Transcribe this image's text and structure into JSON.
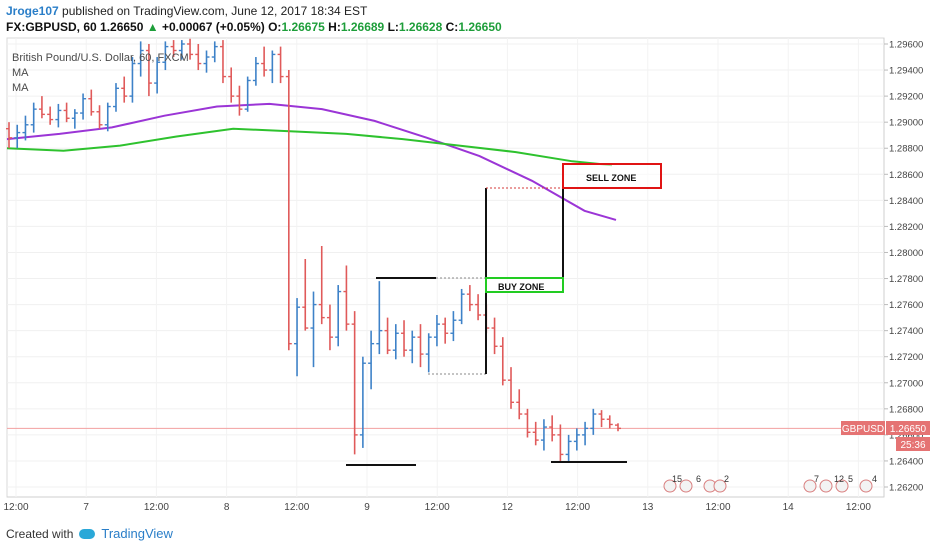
{
  "header": {
    "user": "Jroge107",
    "published": "published on TradingView.com, June 12, 2017 18:34 EST",
    "symbol_label": "FX:GBPUSD, 60",
    "last_value": "1.26650",
    "change_arrow": "▲",
    "change_text": "+0.00067 (+0.05%)",
    "o_label": "O:",
    "o_value": "1.26675",
    "h_label": "H:",
    "h_value": "1.26689",
    "l_label": "L:",
    "l_value": "1.26628",
    "c_label": "C:",
    "c_value": "1.26650"
  },
  "pane": {
    "title": "British Pound/U.S. Dollar, 60, FXCM",
    "ma1_label": "MA",
    "ma2_label": "MA"
  },
  "badges": {
    "symbol": "GBPUSD",
    "price": "1.26650",
    "countdown": "25:36"
  },
  "annotations": {
    "sell_zone": "SELL ZONE",
    "buy_zone": "BUY ZONE"
  },
  "events": {
    "group1": [
      "15",
      "6",
      "2"
    ],
    "group2": [
      "7",
      "12",
      "5",
      "4"
    ]
  },
  "footer": {
    "created_with": "Created with",
    "brand": "TradingView"
  },
  "colors": {
    "up": "#3e82c8",
    "down": "#e05a5a",
    "ma_fast": "#9b35d6",
    "ma_slow": "#2ec22e",
    "sell_zone_border": "#e01414",
    "buy_zone_border": "#22cc22",
    "price_badge": "#e57373"
  },
  "chart_data": {
    "type": "candlestick",
    "title": "British Pound/U.S. Dollar, 60, FXCM",
    "x_tick_labels": [
      "12:00",
      "7",
      "12:00",
      "8",
      "12:00",
      "9",
      "12:00",
      "12",
      "12:00",
      "13",
      "12:00",
      "14",
      "12:00"
    ],
    "y_tick_labels": [
      "1.29600",
      "1.29400",
      "1.29200",
      "1.29000",
      "1.28800",
      "1.28600",
      "1.28400",
      "1.28200",
      "1.28000",
      "1.27800",
      "1.27600",
      "1.27400",
      "1.27200",
      "1.27000",
      "1.26800",
      "1.26600",
      "1.26400",
      "1.26200"
    ],
    "ylim": [
      1.2612,
      1.2966
    ],
    "bars": [
      [
        1.2895,
        1.29,
        1.288,
        1.2888
      ],
      [
        1.2888,
        1.2898,
        1.288,
        1.2892
      ],
      [
        1.2892,
        1.2905,
        1.2886,
        1.2898
      ],
      [
        1.2898,
        1.2915,
        1.2892,
        1.291
      ],
      [
        1.291,
        1.292,
        1.2903,
        1.2906
      ],
      [
        1.2906,
        1.2912,
        1.2898,
        1.2902
      ],
      [
        1.2902,
        1.2914,
        1.2896,
        1.2909
      ],
      [
        1.2909,
        1.2915,
        1.29,
        1.2903
      ],
      [
        1.2903,
        1.291,
        1.2895,
        1.2907
      ],
      [
        1.2907,
        1.2922,
        1.2902,
        1.2918
      ],
      [
        1.2918,
        1.2925,
        1.2905,
        1.2908
      ],
      [
        1.2908,
        1.2913,
        1.2895,
        1.2898
      ],
      [
        1.2898,
        1.2915,
        1.2893,
        1.2912
      ],
      [
        1.2912,
        1.293,
        1.2908,
        1.2926
      ],
      [
        1.2926,
        1.2935,
        1.2915,
        1.292
      ],
      [
        1.292,
        1.295,
        1.2915,
        1.2945
      ],
      [
        1.2945,
        1.2962,
        1.2935,
        1.2955
      ],
      [
        1.2955,
        1.296,
        1.292,
        1.293
      ],
      [
        1.293,
        1.295,
        1.2922,
        1.2946
      ],
      [
        1.2946,
        1.2962,
        1.294,
        1.2958
      ],
      [
        1.2958,
        1.2963,
        1.295,
        1.2955
      ],
      [
        1.2955,
        1.2963,
        1.2948,
        1.296
      ],
      [
        1.296,
        1.2964,
        1.2948,
        1.2952
      ],
      [
        1.2952,
        1.296,
        1.294,
        1.2945
      ],
      [
        1.2945,
        1.2955,
        1.2938,
        1.295
      ],
      [
        1.295,
        1.2962,
        1.2946,
        1.2958
      ],
      [
        1.2958,
        1.2963,
        1.293,
        1.2935
      ],
      [
        1.2935,
        1.2942,
        1.2915,
        1.292
      ],
      [
        1.292,
        1.2928,
        1.2905,
        1.291
      ],
      [
        1.291,
        1.2935,
        1.2908,
        1.2932
      ],
      [
        1.2932,
        1.295,
        1.2928,
        1.2945
      ],
      [
        1.2945,
        1.2958,
        1.2935,
        1.294
      ],
      [
        1.294,
        1.2955,
        1.293,
        1.2952
      ],
      [
        1.2952,
        1.2958,
        1.293,
        1.2935
      ],
      [
        1.2935,
        1.294,
        1.2725,
        1.273
      ],
      [
        1.273,
        1.2765,
        1.2705,
        1.2758
      ],
      [
        1.2758,
        1.2795,
        1.274,
        1.2742
      ],
      [
        1.2742,
        1.277,
        1.2712,
        1.276
      ],
      [
        1.276,
        1.2805,
        1.2745,
        1.275
      ],
      [
        1.275,
        1.276,
        1.2725,
        1.2735
      ],
      [
        1.2735,
        1.2775,
        1.2728,
        1.277
      ],
      [
        1.277,
        1.279,
        1.274,
        1.2745
      ],
      [
        1.2745,
        1.2755,
        1.2645,
        1.266
      ],
      [
        1.266,
        1.272,
        1.265,
        1.2715
      ],
      [
        1.2715,
        1.274,
        1.2695,
        1.273
      ],
      [
        1.273,
        1.2778,
        1.2722,
        1.274
      ],
      [
        1.274,
        1.275,
        1.2722,
        1.2725
      ],
      [
        1.2725,
        1.2745,
        1.2718,
        1.2738
      ],
      [
        1.2738,
        1.2748,
        1.272,
        1.2725
      ],
      [
        1.2725,
        1.274,
        1.2715,
        1.2735
      ],
      [
        1.2735,
        1.2745,
        1.2712,
        1.2722
      ],
      [
        1.2722,
        1.2738,
        1.2708,
        1.2735
      ],
      [
        1.2735,
        1.2752,
        1.2728,
        1.2745
      ],
      [
        1.2745,
        1.275,
        1.273,
        1.2738
      ],
      [
        1.2738,
        1.2755,
        1.2732,
        1.2748
      ],
      [
        1.2748,
        1.2772,
        1.2745,
        1.2768
      ],
      [
        1.2768,
        1.2775,
        1.2755,
        1.276
      ],
      [
        1.276,
        1.2768,
        1.2748,
        1.2752
      ],
      [
        1.2752,
        1.276,
        1.2738,
        1.2742
      ],
      [
        1.2742,
        1.275,
        1.2722,
        1.2728
      ],
      [
        1.2728,
        1.2735,
        1.2698,
        1.2702
      ],
      [
        1.2702,
        1.2712,
        1.268,
        1.2685
      ],
      [
        1.2685,
        1.2695,
        1.2672,
        1.2676
      ],
      [
        1.2676,
        1.268,
        1.2658,
        1.2662
      ],
      [
        1.2662,
        1.267,
        1.2652,
        1.2656
      ],
      [
        1.2656,
        1.2672,
        1.2648,
        1.2666
      ],
      [
        1.2666,
        1.2675,
        1.2655,
        1.266
      ],
      [
        1.266,
        1.2668,
        1.264,
        1.2645
      ],
      [
        1.2645,
        1.266,
        1.264,
        1.2655
      ],
      [
        1.2655,
        1.2665,
        1.2648,
        1.266
      ],
      [
        1.266,
        1.267,
        1.2652,
        1.2665
      ],
      [
        1.2665,
        1.268,
        1.266,
        1.2676
      ],
      [
        1.2676,
        1.2679,
        1.2666,
        1.2672
      ],
      [
        1.2672,
        1.2675,
        1.2665,
        1.2668
      ],
      [
        1.26675,
        1.26689,
        1.26628,
        1.2665
      ]
    ],
    "ma_fast": [
      [
        0,
        1.2887
      ],
      [
        20,
        1.2891
      ],
      [
        40,
        1.2896
      ],
      [
        60,
        1.2905
      ],
      [
        80,
        1.2912
      ],
      [
        100,
        1.2914
      ],
      [
        120,
        1.291
      ],
      [
        140,
        1.2901
      ],
      [
        160,
        1.2888
      ],
      [
        180,
        1.2874
      ],
      [
        200,
        1.2855
      ],
      [
        220,
        1.2832
      ],
      [
        232,
        1.2825
      ]
    ],
    "ma_slow": [
      [
        0,
        1.288
      ],
      [
        20,
        1.2878
      ],
      [
        40,
        1.2882
      ],
      [
        60,
        1.2889
      ],
      [
        80,
        1.2895
      ],
      [
        100,
        1.2893
      ],
      [
        120,
        1.2891
      ],
      [
        140,
        1.2887
      ],
      [
        160,
        1.2882
      ],
      [
        180,
        1.2877
      ],
      [
        200,
        1.287
      ],
      [
        214,
        1.2867
      ]
    ],
    "price_line": 1.2665
  }
}
